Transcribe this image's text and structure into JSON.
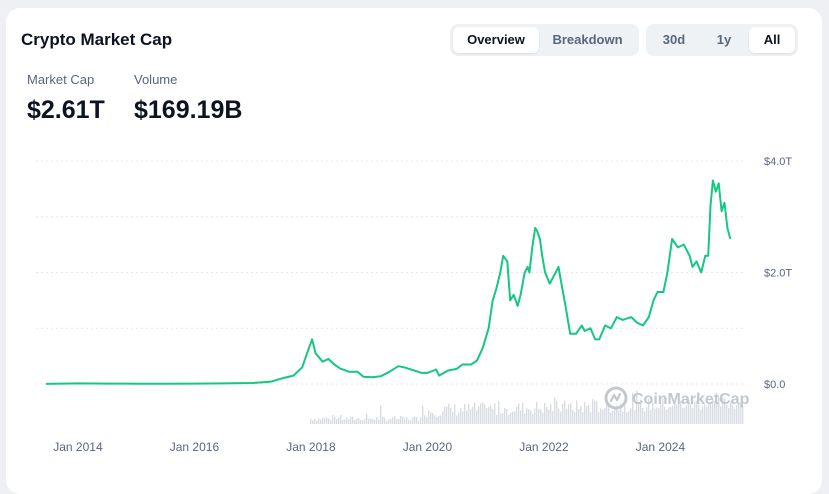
{
  "header": {
    "title": "Crypto Market Cap",
    "view_tabs": [
      {
        "label": "Overview",
        "active": true
      },
      {
        "label": "Breakdown",
        "active": false
      }
    ],
    "range_tabs": [
      {
        "label": "30d",
        "active": false
      },
      {
        "label": "1y",
        "active": false
      },
      {
        "label": "All",
        "active": true
      }
    ]
  },
  "stats": {
    "market_cap_label": "Market Cap",
    "market_cap_value": "$2.61T",
    "volume_label": "Volume",
    "volume_value": "$169.19B"
  },
  "watermark": "CoinMarketCap",
  "colors": {
    "line": "#16c784",
    "line_early": "#ea3943",
    "volume": "#d9dde3",
    "grid": "#e6e8ec"
  },
  "chart_data": {
    "type": "line",
    "title": "",
    "y_unit": "T",
    "ylim": [
      -0.6,
      4.0
    ],
    "y_ticks": [
      {
        "v": 4.0,
        "label": "$4.0T"
      },
      {
        "v": 2.0,
        "label": "$2.0T"
      },
      {
        "v": 0.0,
        "label": "$0.0"
      }
    ],
    "xlim": [
      2013.4,
      2025.4
    ],
    "x_ticks": [
      {
        "v": 2014.0,
        "label": "Jan 2014"
      },
      {
        "v": 2016.0,
        "label": "Jan 2016"
      },
      {
        "v": 2018.0,
        "label": "Jan 2018"
      },
      {
        "v": 2020.0,
        "label": "Jan 2020"
      },
      {
        "v": 2022.0,
        "label": "Jan 2022"
      },
      {
        "v": 2024.0,
        "label": "Jan 2024"
      }
    ],
    "grid": true,
    "series": [
      {
        "values": [
          [
            2013.45,
            0.002
          ],
          [
            2014.0,
            0.01
          ],
          [
            2014.5,
            0.008
          ],
          [
            2015.0,
            0.006
          ],
          [
            2015.5,
            0.004
          ],
          [
            2016.0,
            0.007
          ],
          [
            2016.5,
            0.01
          ],
          [
            2017.0,
            0.018
          ],
          [
            2017.3,
            0.04
          ],
          [
            2017.5,
            0.1
          ],
          [
            2017.7,
            0.15
          ],
          [
            2017.85,
            0.3
          ],
          [
            2017.95,
            0.6
          ],
          [
            2018.02,
            0.8
          ],
          [
            2018.08,
            0.55
          ],
          [
            2018.2,
            0.4
          ],
          [
            2018.3,
            0.45
          ],
          [
            2018.4,
            0.35
          ],
          [
            2018.5,
            0.28
          ],
          [
            2018.65,
            0.22
          ],
          [
            2018.8,
            0.22
          ],
          [
            2018.9,
            0.13
          ],
          [
            2019.05,
            0.12
          ],
          [
            2019.2,
            0.14
          ],
          [
            2019.35,
            0.22
          ],
          [
            2019.5,
            0.32
          ],
          [
            2019.6,
            0.3
          ],
          [
            2019.75,
            0.25
          ],
          [
            2019.9,
            0.2
          ],
          [
            2020.0,
            0.2
          ],
          [
            2020.15,
            0.26
          ],
          [
            2020.2,
            0.15
          ],
          [
            2020.35,
            0.24
          ],
          [
            2020.5,
            0.27
          ],
          [
            2020.6,
            0.35
          ],
          [
            2020.75,
            0.35
          ],
          [
            2020.85,
            0.42
          ],
          [
            2020.95,
            0.65
          ],
          [
            2021.05,
            1.0
          ],
          [
            2021.12,
            1.5
          ],
          [
            2021.18,
            1.7
          ],
          [
            2021.25,
            2.0
          ],
          [
            2021.3,
            2.3
          ],
          [
            2021.37,
            2.2
          ],
          [
            2021.42,
            1.5
          ],
          [
            2021.48,
            1.6
          ],
          [
            2021.55,
            1.4
          ],
          [
            2021.6,
            1.6
          ],
          [
            2021.67,
            2.0
          ],
          [
            2021.72,
            2.1
          ],
          [
            2021.75,
            2.0
          ],
          [
            2021.8,
            2.45
          ],
          [
            2021.85,
            2.8
          ],
          [
            2021.88,
            2.75
          ],
          [
            2021.93,
            2.6
          ],
          [
            2021.97,
            2.3
          ],
          [
            2022.02,
            2.0
          ],
          [
            2022.1,
            1.8
          ],
          [
            2022.2,
            2.0
          ],
          [
            2022.25,
            2.1
          ],
          [
            2022.3,
            1.8
          ],
          [
            2022.37,
            1.4
          ],
          [
            2022.45,
            0.9
          ],
          [
            2022.55,
            0.9
          ],
          [
            2022.65,
            1.05
          ],
          [
            2022.7,
            0.95
          ],
          [
            2022.8,
            1.0
          ],
          [
            2022.88,
            0.8
          ],
          [
            2022.95,
            0.8
          ],
          [
            2023.05,
            1.05
          ],
          [
            2023.15,
            1.0
          ],
          [
            2023.25,
            1.2
          ],
          [
            2023.35,
            1.15
          ],
          [
            2023.5,
            1.2
          ],
          [
            2023.6,
            1.1
          ],
          [
            2023.7,
            1.05
          ],
          [
            2023.8,
            1.2
          ],
          [
            2023.88,
            1.5
          ],
          [
            2023.95,
            1.65
          ],
          [
            2024.05,
            1.65
          ],
          [
            2024.12,
            2.0
          ],
          [
            2024.2,
            2.6
          ],
          [
            2024.3,
            2.45
          ],
          [
            2024.4,
            2.5
          ],
          [
            2024.5,
            2.3
          ],
          [
            2024.55,
            2.1
          ],
          [
            2024.62,
            2.2
          ],
          [
            2024.7,
            2.0
          ],
          [
            2024.77,
            2.3
          ],
          [
            2024.82,
            2.3
          ],
          [
            2024.86,
            3.2
          ],
          [
            2024.9,
            3.65
          ],
          [
            2024.95,
            3.45
          ],
          [
            2025.0,
            3.6
          ],
          [
            2025.05,
            3.1
          ],
          [
            2025.1,
            3.25
          ],
          [
            2025.15,
            2.8
          ],
          [
            2025.2,
            2.6
          ]
        ]
      }
    ],
    "volume_note": "volume bars shown along bottom without axis labels"
  }
}
